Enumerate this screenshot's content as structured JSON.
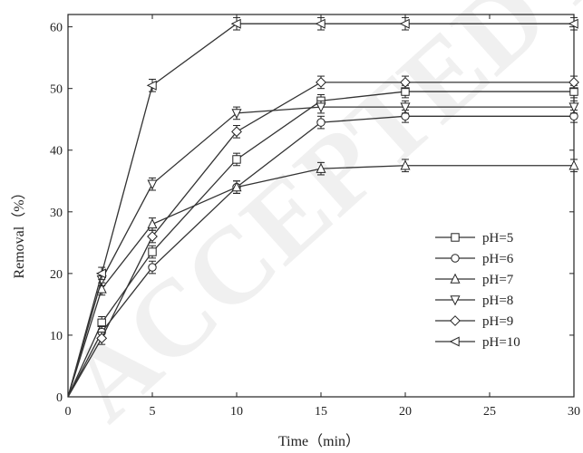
{
  "chart_data": {
    "type": "line",
    "xlabel": "Time（min）",
    "ylabel": "Removal（%）",
    "xlim": [
      0,
      30
    ],
    "ylim": [
      0,
      62
    ],
    "x_ticks": [
      0,
      5,
      10,
      15,
      20,
      25,
      30
    ],
    "y_ticks": [
      0,
      10,
      20,
      30,
      40,
      50,
      60
    ],
    "x": [
      0,
      2,
      5,
      10,
      15,
      20,
      30
    ],
    "legend_position": "center-right",
    "grid": false,
    "series": [
      {
        "name": "pH=5",
        "marker": "square",
        "values": [
          0,
          12.0,
          23.5,
          38.5,
          48.0,
          49.5,
          49.5
        ],
        "err": 1.0
      },
      {
        "name": "pH=6",
        "marker": "circle",
        "values": [
          0,
          10.5,
          21.0,
          34.0,
          44.5,
          45.5,
          45.5
        ],
        "err": 1.0
      },
      {
        "name": "pH=7",
        "marker": "triangle-up",
        "values": [
          0,
          17.5,
          28.0,
          34.0,
          37.0,
          37.5,
          37.5
        ],
        "err": 1.0
      },
      {
        "name": "pH=8",
        "marker": "triangle-down",
        "values": [
          0,
          19.0,
          34.5,
          46.0,
          47.0,
          47.0,
          47.0
        ],
        "err": 1.0
      },
      {
        "name": "pH=9",
        "marker": "diamond",
        "values": [
          0,
          9.5,
          26.0,
          43.0,
          51.0,
          51.0,
          51.0
        ],
        "err": 1.0
      },
      {
        "name": "pH=10",
        "marker": "triangle-left",
        "values": [
          0,
          20.0,
          50.5,
          60.5,
          60.5,
          60.5,
          60.5
        ],
        "err": 1.0
      }
    ]
  },
  "watermark": "ACCEPTED MA"
}
